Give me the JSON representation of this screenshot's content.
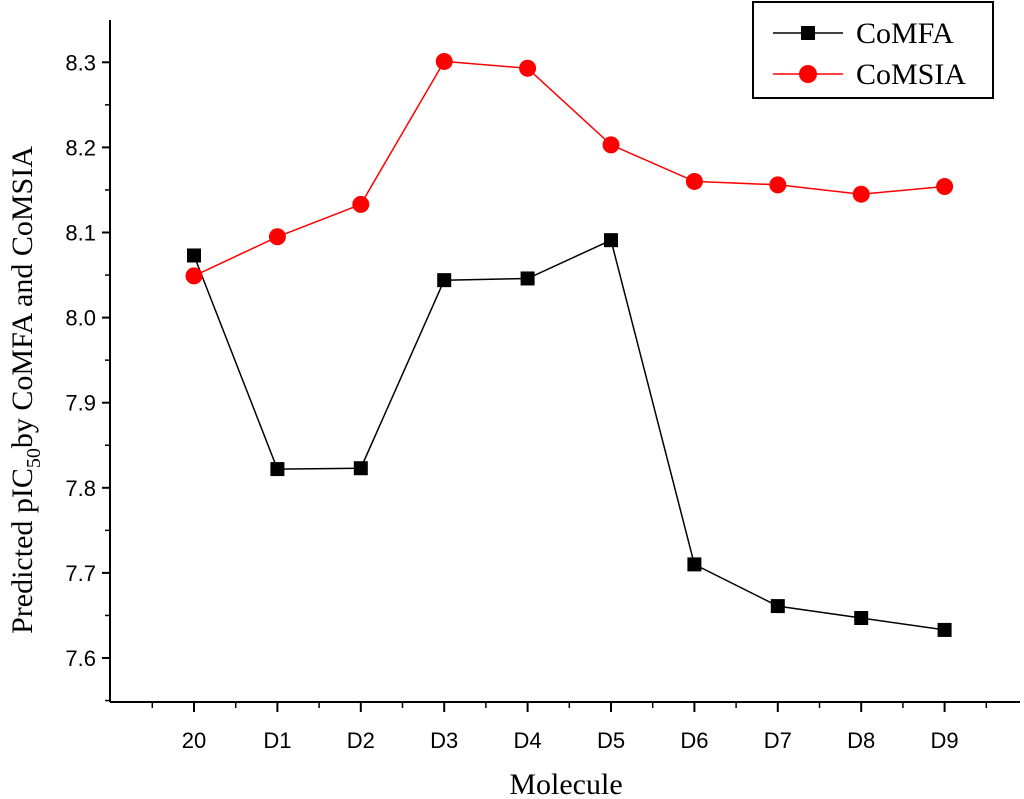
{
  "chart_data": {
    "type": "line",
    "categories": [
      "20",
      "D1",
      "D2",
      "D3",
      "D4",
      "D5",
      "D6",
      "D7",
      "D8",
      "D9"
    ],
    "series": [
      {
        "name": "CoMFA",
        "color": "#000000",
        "marker": "square",
        "values": [
          8.073,
          7.822,
          7.823,
          8.044,
          8.046,
          8.091,
          7.71,
          7.661,
          7.647,
          7.633
        ]
      },
      {
        "name": "CoMSIA",
        "color": "#ff0000",
        "marker": "circle",
        "values": [
          8.049,
          8.095,
          8.133,
          8.301,
          8.293,
          8.203,
          8.16,
          8.156,
          8.145,
          8.154
        ]
      }
    ],
    "ylim": [
      7.55,
      8.37
    ],
    "yticks": [
      "7.6",
      "7.7",
      "7.8",
      "7.9",
      "8.0",
      "8.1",
      "8.2",
      "8.3"
    ],
    "ytick_values": [
      7.6,
      7.7,
      7.8,
      7.9,
      8.0,
      8.1,
      8.2,
      8.3
    ],
    "xlabel": "Molecule",
    "ylabel": {
      "prefix": "Predicted pIC",
      "subscript": "50",
      "suffix": "by CoMFA and CoMSIA"
    },
    "legend_position": "top-right",
    "grid": false
  }
}
